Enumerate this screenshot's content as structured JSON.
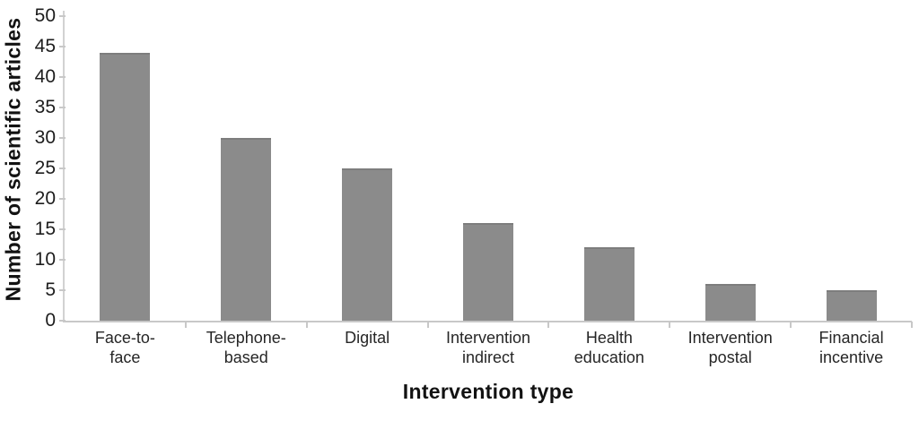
{
  "chart_data": {
    "type": "bar",
    "title": "",
    "xlabel": "Intervention type",
    "ylabel": "Number of scientific articles",
    "categories": [
      "Face-to-face",
      "Telephone-based",
      "Digital",
      "Intervention indirect",
      "Health education",
      "Intervention postal",
      "Financial incentive"
    ],
    "category_display": [
      "Face-to-\nface",
      "Telephone-\nbased",
      "Digital",
      "Intervention\nindirect",
      "Health\neducation",
      "Intervention\npostal",
      "Financial\nincentive"
    ],
    "values": [
      44,
      30,
      25,
      16,
      12,
      6,
      5
    ],
    "ylim": [
      0,
      50
    ],
    "yticks": [
      0,
      5,
      10,
      15,
      20,
      25,
      30,
      35,
      40,
      45,
      50
    ],
    "grid": false,
    "legend": null,
    "bar_color": "#8b8b8b",
    "bar_edge_color": "#7d7d7d",
    "axis_color": "#c8c8c8",
    "tick_text_color": "#1d1d1d",
    "label_text_color": "#262626",
    "title_text_color": "#121212",
    "background_color": "#ffffff"
  }
}
